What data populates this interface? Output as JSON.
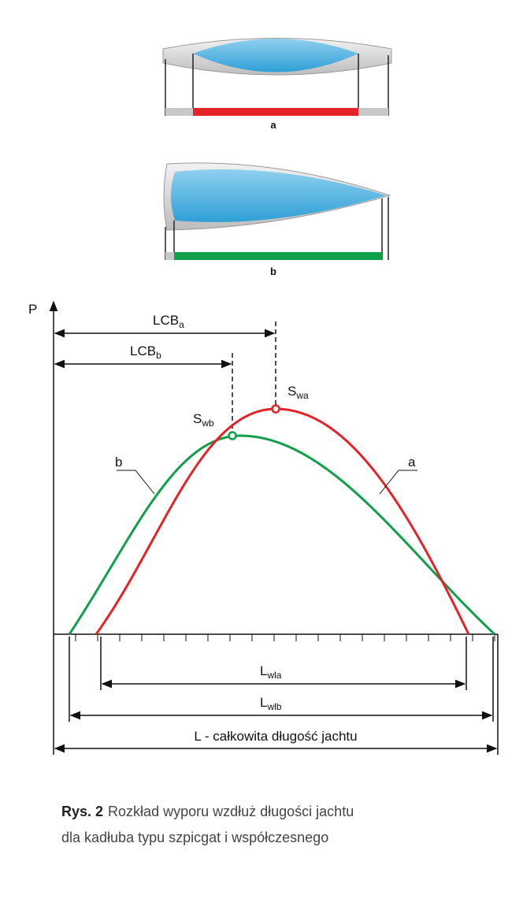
{
  "hull_a": {
    "label": "a"
  },
  "hull_b": {
    "label": "b"
  },
  "plot": {
    "axis_label": "P",
    "lcb_a": {
      "base": "LCB",
      "sub": "a"
    },
    "lcb_b": {
      "base": "LCB",
      "sub": "b"
    },
    "sw_a": {
      "base": "S",
      "sub": "wa"
    },
    "sw_b": {
      "base": "S",
      "sub": "wb"
    },
    "curve_b_label": "b",
    "curve_a_label": "a",
    "lwl_a": {
      "base": "L",
      "sub": "wla"
    },
    "lwl_b": {
      "base": "L",
      "sub": "wlb"
    },
    "total_length": "L - całkowita długość jachtu"
  },
  "caption": {
    "prefix": "Rys. 2",
    "line1": "Rozkład wyporu wzdłuż długości jachtu",
    "line2": "dla kadłuba typu szpicgat i współczesnego"
  }
}
